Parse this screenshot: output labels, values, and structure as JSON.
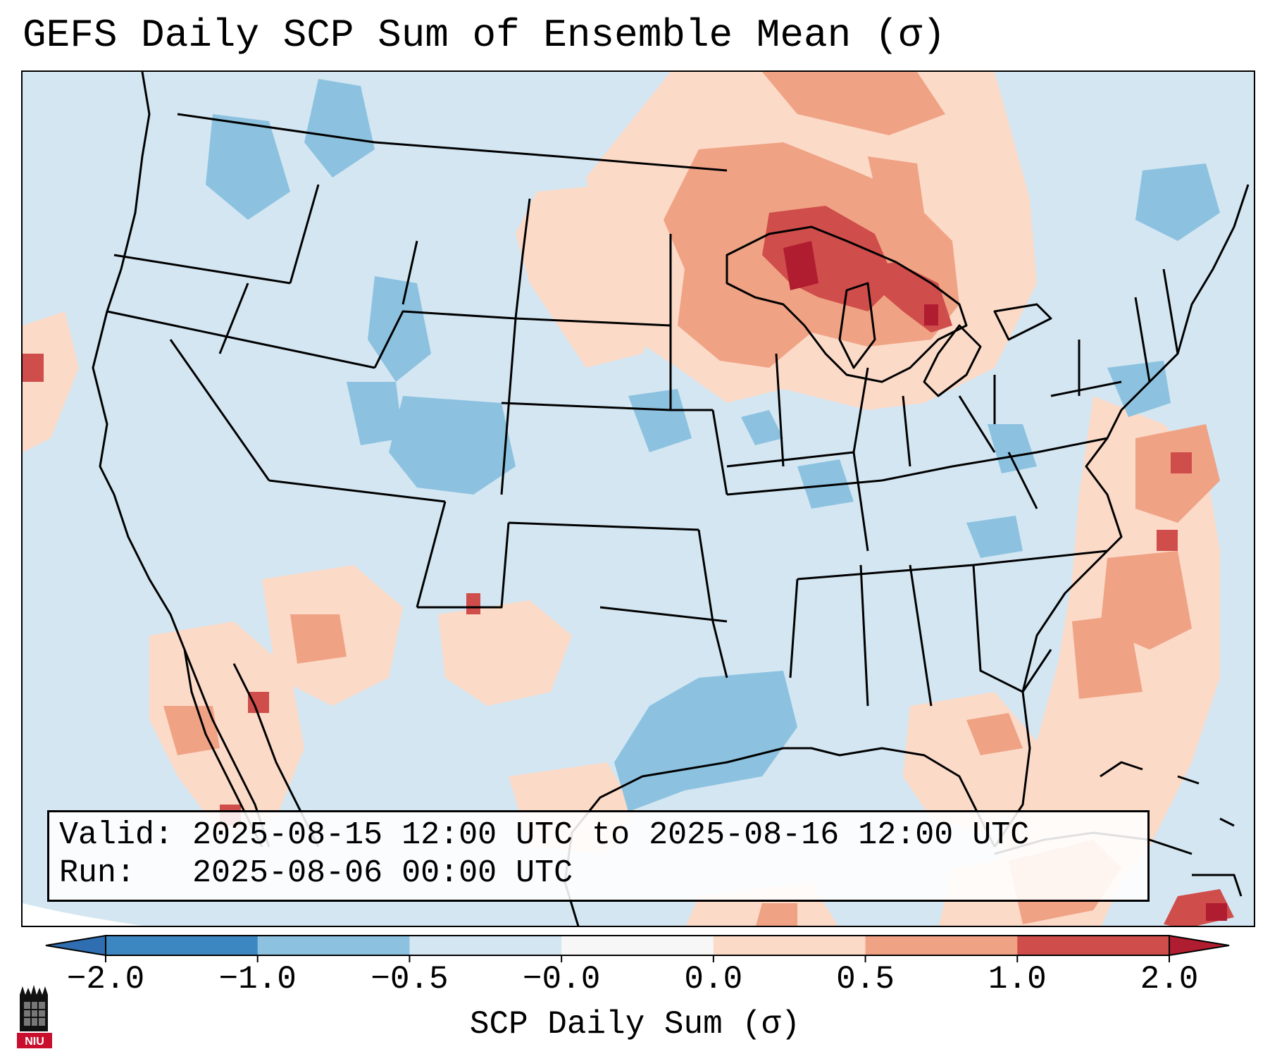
{
  "title": "GEFS Daily SCP Sum of Ensemble Mean (σ)",
  "info": {
    "valid_label": "Valid:",
    "valid_value": "2025-08-15 12:00 UTC to 2025-08-16 12:00 UTC",
    "run_label": "Run:",
    "run_value": "2025-08-06 00:00 UTC"
  },
  "colorbar": {
    "label": "SCP Daily Sum (σ)",
    "ticks": [
      "−2.0",
      "−1.0",
      "−0.5",
      "−0.0",
      "0.0",
      "0.5",
      "1.0",
      "2.0"
    ],
    "colors": [
      "#3c87c2",
      "#8cc2e0",
      "#d3e6f2",
      "#f7f7f7",
      "#fbdac8",
      "#f0a284",
      "#cf4d4a"
    ],
    "under_color": "#2f6eb0",
    "over_color": "#b01c30"
  },
  "map": {
    "background_color": "#d3e6f2",
    "regions_by_value": [
      {
        "area": "Great Lakes / Upper Midwest",
        "level": "1.0 to 2.0"
      },
      {
        "area": "Upper Mississippi Valley / Ontario",
        "level": "0.5 to 1.0"
      },
      {
        "area": "Northern Plains",
        "level": "0.0 to 0.5"
      },
      {
        "area": "Southern Rockies / Central Plains",
        "level": "-1.0 to -0.5"
      },
      {
        "area": "Western Gulf of Mexico",
        "level": "-1.0 to -0.5"
      },
      {
        "area": "Western Atlantic off Carolinas",
        "level": "0.5 to 1.0"
      },
      {
        "area": "Florida / Eastern Gulf",
        "level": "0.0 to 0.5"
      },
      {
        "area": "Baja California / Gulf of California",
        "level": "0.5 to 1.0"
      },
      {
        "area": "Hispaniola / Caribbean",
        "level": "1.0 to 2.0"
      }
    ]
  },
  "logo_text": "NIU"
}
